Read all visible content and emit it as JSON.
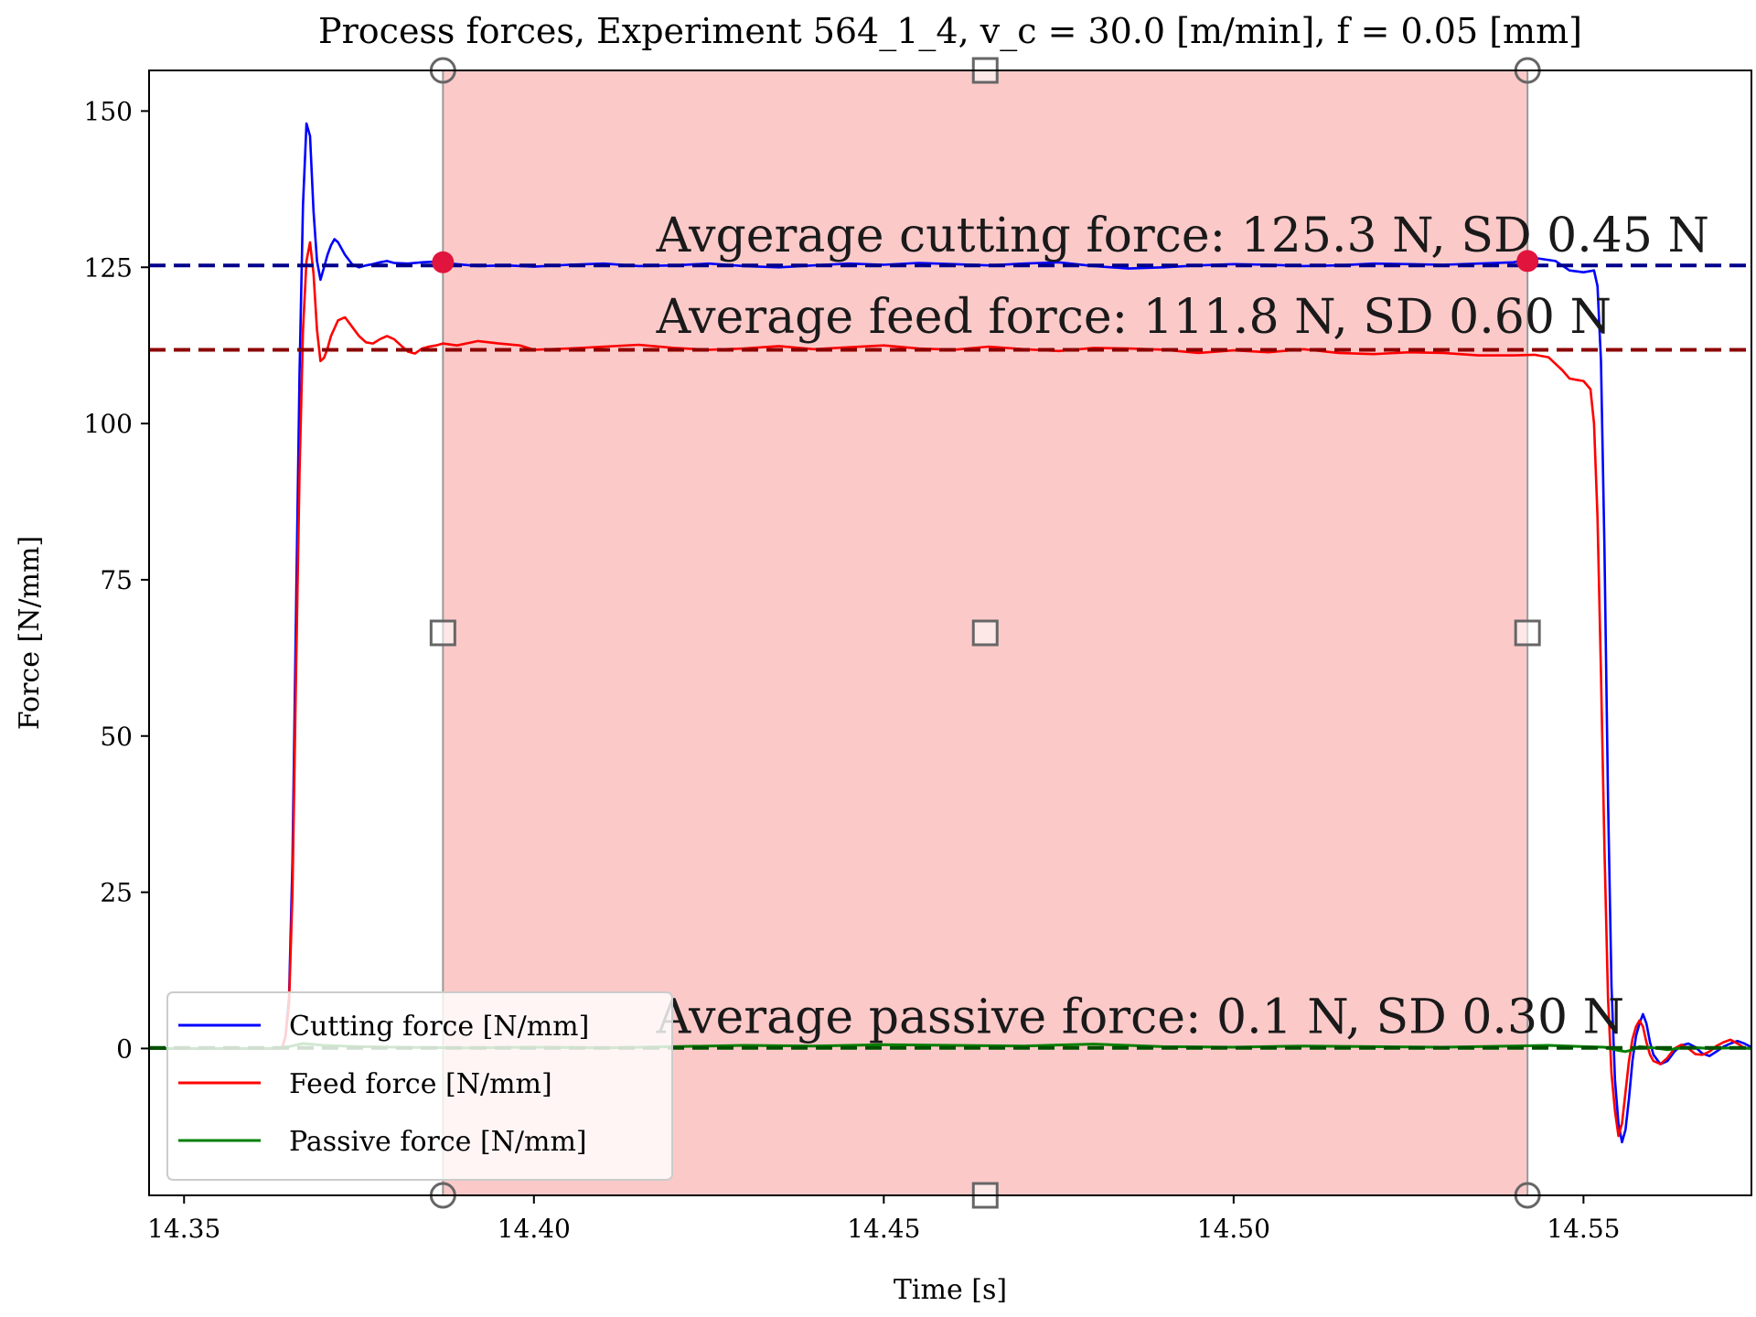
{
  "chart_data": {
    "type": "line",
    "title": "Process forces, Experiment 564_1_4, v_c = 30.0 [m/min], f = 0.05 [mm]",
    "xlabel": "Time [s]",
    "ylabel": "Force [N/mm]",
    "xlim": [
      14.345,
      14.574
    ],
    "ylim": [
      -23.5,
      156.5
    ],
    "xticks": [
      14.35,
      14.4,
      14.45,
      14.5,
      14.55
    ],
    "xtick_labels": [
      "14.35",
      "14.40",
      "14.45",
      "14.50",
      "14.55"
    ],
    "yticks": [
      0,
      25,
      50,
      75,
      100,
      125,
      150
    ],
    "ytick_labels": [
      "0",
      "25",
      "50",
      "75",
      "100",
      "125",
      "150"
    ],
    "grid": false,
    "legend_position": "lower-left",
    "selection_region": {
      "x_start": 14.387,
      "x_end": 14.542,
      "color": "#fcc9c9"
    },
    "region_handles": {
      "x": [
        14.387,
        14.4645,
        14.542
      ],
      "y_mid": 66.5,
      "color": "#666666"
    },
    "average_markers": [
      {
        "x": 14.387,
        "y": 125.8
      },
      {
        "x": 14.542,
        "y": 126.0
      }
    ],
    "average_lines": [
      {
        "series": "Cutting force [N/mm]",
        "value": 125.3,
        "color": "#00008b"
      },
      {
        "series": "Feed force [N/mm]",
        "value": 111.8,
        "color": "#8b0000"
      },
      {
        "series": "Passive force [N/mm]",
        "value": 0.1,
        "color": "#005000"
      }
    ],
    "annotations": [
      {
        "text": "Avgerage cutting force: 125.3 N, SD 0.45 N",
        "x": 14.4175,
        "y": 127.5
      },
      {
        "text": "Average feed force: 111.8 N, SD 0.60 N",
        "x": 14.4175,
        "y": 114.5
      },
      {
        "text": "Average passive force: 0.1 N, SD 0.30 N",
        "x": 14.4175,
        "y": 2.5
      }
    ],
    "series": [
      {
        "name": "Cutting force [N/mm]",
        "color": "#0000ff",
        "x": [
          14.345,
          14.364,
          14.3645,
          14.365,
          14.3655,
          14.366,
          14.3665,
          14.367,
          14.3675,
          14.368,
          14.3685,
          14.369,
          14.3695,
          14.37,
          14.3705,
          14.371,
          14.3715,
          14.372,
          14.373,
          14.374,
          14.375,
          14.376,
          14.377,
          14.378,
          14.379,
          14.38,
          14.382,
          14.384,
          14.386,
          14.388,
          14.392,
          14.396,
          14.4,
          14.405,
          14.41,
          14.415,
          14.42,
          14.425,
          14.43,
          14.435,
          14.44,
          14.445,
          14.45,
          14.455,
          14.46,
          14.465,
          14.47,
          14.475,
          14.48,
          14.485,
          14.49,
          14.495,
          14.5,
          14.505,
          14.51,
          14.515,
          14.52,
          14.525,
          14.53,
          14.535,
          14.54,
          14.543,
          14.546,
          14.548,
          14.55,
          14.5515,
          14.552,
          14.5525,
          14.553,
          14.5535,
          14.554,
          14.5545,
          14.555,
          14.5555,
          14.556,
          14.5565,
          14.557,
          14.5575,
          14.558,
          14.5585,
          14.559,
          14.5595,
          14.56,
          14.561,
          14.562,
          14.563,
          14.564,
          14.565,
          14.566,
          14.567,
          14.568,
          14.569,
          14.57,
          14.571,
          14.572,
          14.573,
          14.574
        ],
        "y": [
          0,
          0,
          2,
          8,
          30,
          70,
          108,
          135,
          148,
          146,
          134,
          126,
          123,
          125,
          127,
          128.5,
          129.5,
          129,
          127,
          125.5,
          125,
          125.3,
          125.5,
          125.8,
          126,
          125.7,
          125.6,
          125.8,
          125.9,
          125.6,
          125.2,
          125.3,
          125.1,
          125.4,
          125.6,
          125.2,
          125.3,
          125.6,
          125.2,
          125.0,
          125.3,
          125.6,
          125.4,
          125.7,
          125.5,
          125.3,
          125.6,
          125.8,
          125.2,
          124.8,
          125.0,
          125.3,
          125.5,
          125.4,
          125.2,
          125.3,
          125.6,
          125.5,
          125.4,
          125.6,
          125.8,
          126.5,
          126.0,
          124.5,
          124.2,
          124.5,
          122,
          110,
          80,
          40,
          10,
          -5,
          -12,
          -15,
          -13,
          -8,
          -2,
          2,
          4,
          5.5,
          4,
          1,
          -1,
          -2.5,
          -2,
          -0.5,
          0.5,
          0.8,
          0.2,
          -0.8,
          -1.2,
          -0.5,
          0.3,
          0.8,
          1.2,
          0.8,
          0.2
        ]
      },
      {
        "name": "Feed force [N/mm]",
        "color": "#ff0000",
        "x": [
          14.345,
          14.364,
          14.3645,
          14.365,
          14.3655,
          14.366,
          14.3665,
          14.367,
          14.3675,
          14.368,
          14.3685,
          14.369,
          14.3695,
          14.37,
          14.3705,
          14.371,
          14.372,
          14.373,
          14.374,
          14.375,
          14.376,
          14.377,
          14.378,
          14.379,
          14.38,
          14.381,
          14.382,
          14.383,
          14.384,
          14.385,
          14.386,
          14.387,
          14.389,
          14.392,
          14.395,
          14.398,
          14.4,
          14.405,
          14.41,
          14.415,
          14.42,
          14.425,
          14.43,
          14.435,
          14.44,
          14.445,
          14.45,
          14.455,
          14.46,
          14.465,
          14.47,
          14.475,
          14.48,
          14.485,
          14.49,
          14.495,
          14.5,
          14.505,
          14.51,
          14.515,
          14.52,
          14.525,
          14.53,
          14.535,
          14.54,
          14.543,
          14.545,
          14.547,
          14.548,
          14.549,
          14.55,
          14.551,
          14.5515,
          14.552,
          14.5525,
          14.553,
          14.5535,
          14.554,
          14.5545,
          14.555,
          14.5555,
          14.556,
          14.5565,
          14.557,
          14.5575,
          14.558,
          14.5585,
          14.559,
          14.5595,
          14.56,
          14.561,
          14.562,
          14.563,
          14.564,
          14.565,
          14.566,
          14.567,
          14.568,
          14.569,
          14.57,
          14.571,
          14.572,
          14.573,
          14.574
        ],
        "y": [
          0,
          0,
          2,
          7,
          25,
          60,
          92,
          115,
          126,
          129,
          124,
          115,
          110,
          110.5,
          112,
          114,
          116.5,
          117,
          115.5,
          114,
          113,
          112.8,
          113.5,
          114,
          113.5,
          112.5,
          111.5,
          111.2,
          112,
          112.3,
          112.5,
          112.8,
          112.5,
          113.2,
          112.8,
          112.5,
          111.8,
          112.0,
          112.3,
          112.6,
          112.1,
          111.8,
          112.0,
          112.4,
          111.9,
          112.2,
          112.5,
          112.0,
          111.8,
          112.3,
          111.9,
          111.6,
          112.1,
          112.0,
          111.8,
          111.3,
          111.7,
          111.4,
          111.9,
          111.3,
          111.1,
          111.4,
          111.3,
          110.9,
          110.9,
          111.0,
          110.6,
          108.5,
          107.2,
          107.0,
          106.8,
          105.5,
          100,
          85,
          60,
          32,
          8,
          -4,
          -10,
          -14,
          -12,
          -7,
          -2,
          1.5,
          3.5,
          4.5,
          3.5,
          1,
          -1,
          -2,
          -2.5,
          -1.5,
          0,
          0.6,
          0,
          -0.9,
          -1.0,
          -0.5,
          0.4,
          1.0,
          1.4,
          0.8,
          0.1,
          0
        ]
      },
      {
        "name": "Passive force [N/mm]",
        "color": "#008000",
        "x": [
          14.345,
          14.362,
          14.365,
          14.367,
          14.37,
          14.375,
          14.38,
          14.39,
          14.4,
          14.41,
          14.42,
          14.43,
          14.44,
          14.45,
          14.46,
          14.47,
          14.48,
          14.49,
          14.5,
          14.51,
          14.52,
          14.53,
          14.54,
          14.545,
          14.55,
          14.553,
          14.555,
          14.556,
          14.557,
          14.558,
          14.56,
          14.562,
          14.565,
          14.568,
          14.571,
          14.574
        ],
        "y": [
          0,
          0,
          0.3,
          0.8,
          0.5,
          0.3,
          0.2,
          0.1,
          0.2,
          0.1,
          0.3,
          0.5,
          0.4,
          0.6,
          0.5,
          0.4,
          0.7,
          0.3,
          0.2,
          0.4,
          0.3,
          0.2,
          0.4,
          0.5,
          0.3,
          0.2,
          -0.3,
          -0.5,
          -0.2,
          0.3,
          0.1,
          -0.2,
          0.2,
          0.0,
          0.1,
          0.0
        ]
      }
    ]
  }
}
